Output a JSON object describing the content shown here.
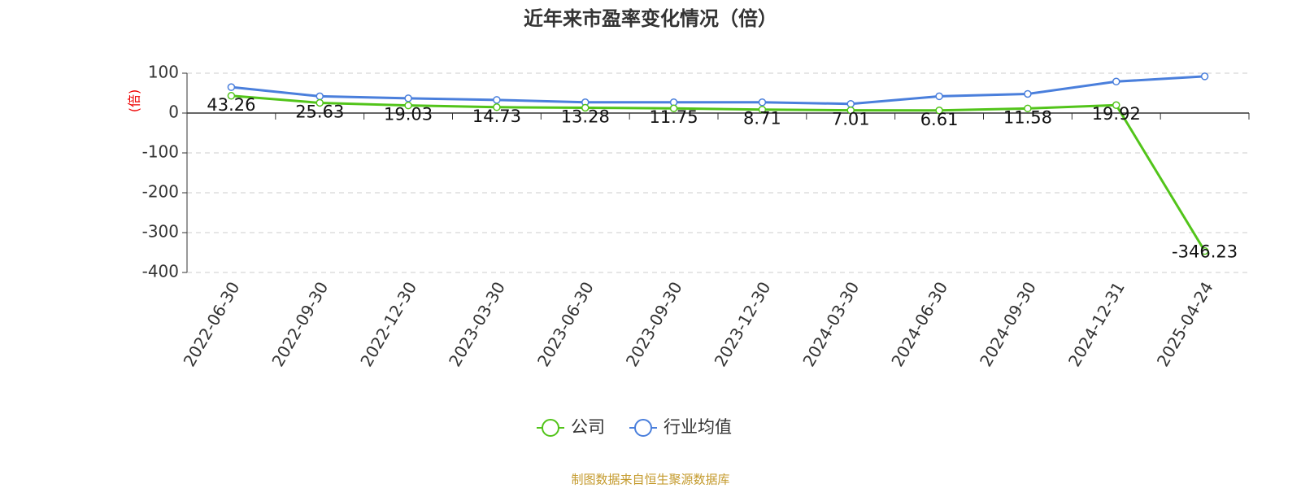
{
  "chart_data": {
    "type": "line",
    "title": "近年来市盈率变化情况（倍）",
    "y_label": "(倍)",
    "categories": [
      "2022-06-30",
      "2022-09-30",
      "2022-12-30",
      "2023-03-30",
      "2023-06-30",
      "2023-09-30",
      "2023-12-30",
      "2024-03-30",
      "2024-06-30",
      "2024-09-30",
      "2024-12-31",
      "2025-04-24"
    ],
    "series": [
      {
        "name": "公司",
        "color": "#52c41a",
        "values": [
          43.26,
          25.63,
          19.03,
          14.73,
          13.28,
          11.75,
          8.71,
          7.01,
          6.61,
          11.58,
          19.92,
          -346.23
        ],
        "labels": true
      },
      {
        "name": "行业均值",
        "color": "#4a7fdc",
        "values": [
          65,
          42,
          37,
          33,
          27,
          27,
          27,
          23,
          42,
          48,
          79,
          92
        ],
        "labels": false
      }
    ],
    "ylim": [
      -400,
      100
    ],
    "yticks": [
      -400,
      -300,
      -200,
      -100,
      0,
      100
    ],
    "grid": true,
    "source": "制图数据来自恒生聚源数据库"
  }
}
